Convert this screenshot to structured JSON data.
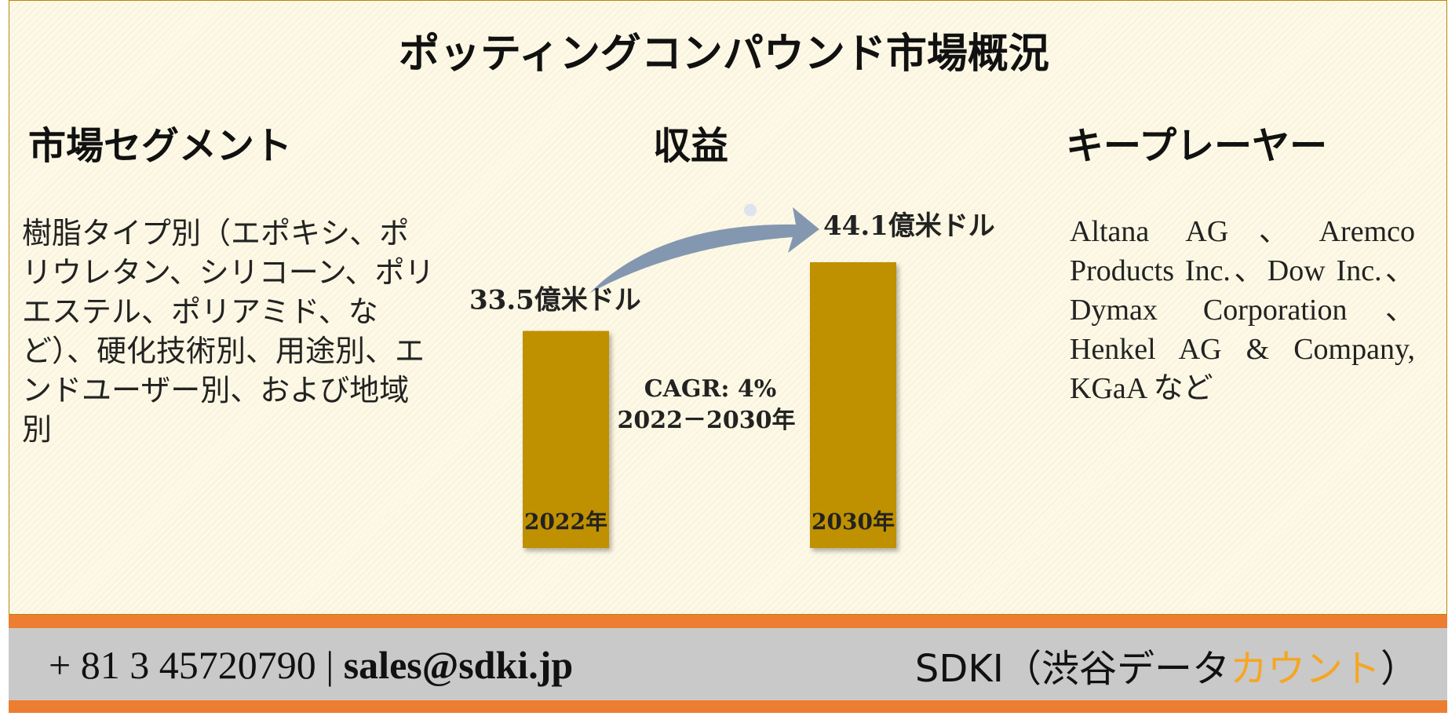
{
  "title": "ポッティングコンパウンド市場概況",
  "headings": {
    "segments": "市場セグメント",
    "revenue": "収益",
    "players": "キープレーヤー"
  },
  "segments_text": "樹脂タイプ別（エポキシ、ポリウレタン、シリコーン、ポリエステル、ポリアミド、など）、硬化技術別、用途別、エンドユーザー別、および地域別",
  "players_text": "Altana AG、Aremco Products Inc.、Dow Inc.、Dymax Corporation、Henkel AG & Company, KGaA など",
  "chart_data": {
    "type": "bar",
    "categories": [
      "2022年",
      "2030年"
    ],
    "values": [
      33.5,
      44.1
    ],
    "value_labels": [
      "33.5億米ドル",
      "44.1億米ドル"
    ],
    "cagr_line1": "CAGR: 4%",
    "cagr_line2": "2022－2030年",
    "bar_color": "#bf9000",
    "arrow_color": "#8497b0"
  },
  "footer": {
    "phone": "+ 81 3 45720790",
    "separator": "|",
    "email": "sales@sdki.jp",
    "brand_prefix": "SDKI（渋谷データ",
    "brand_accent": "カウント",
    "brand_suffix": "）"
  },
  "colors": {
    "stripe": "#ed7d31",
    "footer_bg": "#c9c9c9",
    "accent": "#f6a623"
  }
}
